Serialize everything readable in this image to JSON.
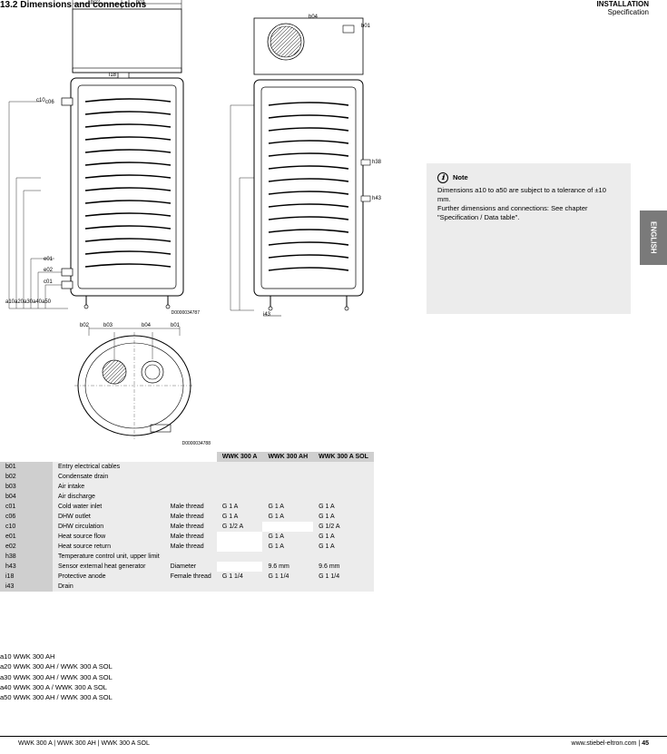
{
  "header": {
    "breadcrumb": "INSTALLATION",
    "section": "Specification"
  },
  "title": "13.2 Dimensions and connections",
  "diagrams": {
    "stroke": "#000000",
    "hatch": "#808080",
    "coil_turns": 15,
    "front": {
      "labels": [
        "b01",
        "b02",
        "b03",
        "b04",
        "a10",
        "a20",
        "a30",
        "a40",
        "a50",
        "i18",
        "i43"
      ],
      "port_labels": [
        "c10",
        "c01",
        "c06",
        "e02",
        "e01"
      ]
    },
    "side": {
      "labels": [
        "b01",
        "h43",
        "h38",
        "i18",
        "i43"
      ]
    },
    "top": {
      "labels": [
        "b01",
        "b02",
        "b03"
      ]
    },
    "drawing_no_front": "D0000034787",
    "drawing_no_top": "D0000034788"
  },
  "info": {
    "icon": "ℹ",
    "title": "Note",
    "lines": [
      "Dimensions a10 to a50 are subject to a tolerance of ±10 mm.",
      "",
      "Further dimensions and connections: See chapter \"Specification / Data table\"."
    ]
  },
  "side_tab": "ENGLISH",
  "table": {
    "product_header": "",
    "products": [
      "WWK 300 A",
      "WWK 300 AH",
      "WWK 300 A SOL"
    ],
    "rows": [
      {
        "k": "b01",
        "label": "Entry electrical cables",
        "v": [
          "",
          "",
          ""
        ],
        "blank": [
          false,
          false,
          false
        ]
      },
      {
        "k": "b02",
        "label": "Condensate drain",
        "v": [
          "",
          "",
          ""
        ],
        "blank": [
          false,
          false,
          false
        ]
      },
      {
        "k": "b03",
        "label": "Air intake",
        "v": [
          "",
          "",
          ""
        ],
        "blank": [
          false,
          false,
          false
        ]
      },
      {
        "k": "b04",
        "label": "Air discharge",
        "v": [
          "",
          "",
          ""
        ],
        "blank": [
          false,
          false,
          false
        ]
      },
      {
        "k": "c01",
        "label": "Cold water inlet",
        "v": [
          "Male thread",
          "G 1 A",
          "G 1 A",
          "G 1 A"
        ],
        "blank": [
          false,
          false,
          false
        ],
        "extra": "Male thread"
      },
      {
        "k": "c06",
        "label": "DHW outlet",
        "v": [
          "Male thread",
          "G 1 A",
          "G 1 A",
          "G 1 A"
        ],
        "blank": [
          false,
          false,
          false
        ],
        "extra": "Male thread"
      },
      {
        "k": "c10",
        "label": "DHW circulation",
        "v": [
          "Male thread",
          "G 1/2 A",
          "",
          "G 1/2 A"
        ],
        "blank": [
          false,
          true,
          false
        ],
        "extra": "Male thread"
      },
      {
        "k": "e01",
        "label": "Heat source flow",
        "v": [
          "Male thread",
          "",
          "G 1 A",
          "G 1 A"
        ],
        "blank": [
          true,
          false,
          false
        ],
        "extra": "Male thread"
      },
      {
        "k": "e02",
        "label": "Heat source return",
        "v": [
          "Male thread",
          "",
          "G 1 A",
          "G 1 A"
        ],
        "blank": [
          true,
          false,
          false
        ],
        "extra": "Male thread"
      },
      {
        "k": "h38",
        "label": "Temperature control unit, upper limit",
        "v": [
          "",
          "",
          ""
        ],
        "blank": [
          false,
          false,
          false
        ]
      },
      {
        "k": "h43",
        "label": "Sensor external heat generator",
        "v": [
          "Diameter",
          "",
          "9.6 mm",
          "9.6 mm"
        ],
        "blank": [
          true,
          false,
          false
        ],
        "extra": "Diameter"
      },
      {
        "k": "i18",
        "label": "Protective anode",
        "v": [
          "Female thread",
          "G 1 1/4",
          "G 1 1/4",
          "G 1 1/4"
        ],
        "blank": [
          false,
          false,
          false
        ],
        "extra": "Female thread"
      },
      {
        "k": "i43",
        "label": "Drain",
        "v": [
          "",
          "",
          ""
        ],
        "blank": [
          false,
          false,
          false
        ]
      }
    ]
  },
  "legend": [
    "a10 WWK 300 AH",
    "a20 WWK 300 AH / WWK 300 A SOL",
    "a30 WWK 300 AH / WWK 300 A SOL",
    "a40 WWK 300 A / WWK 300 A SOL",
    "a50 WWK 300 AH / WWK 300 A SOL"
  ],
  "footer": {
    "left": "WWK 300 A | WWK 300 AH | WWK 300 A SOL",
    "right": "www.stiebel-eltron.com",
    "page": "45"
  }
}
